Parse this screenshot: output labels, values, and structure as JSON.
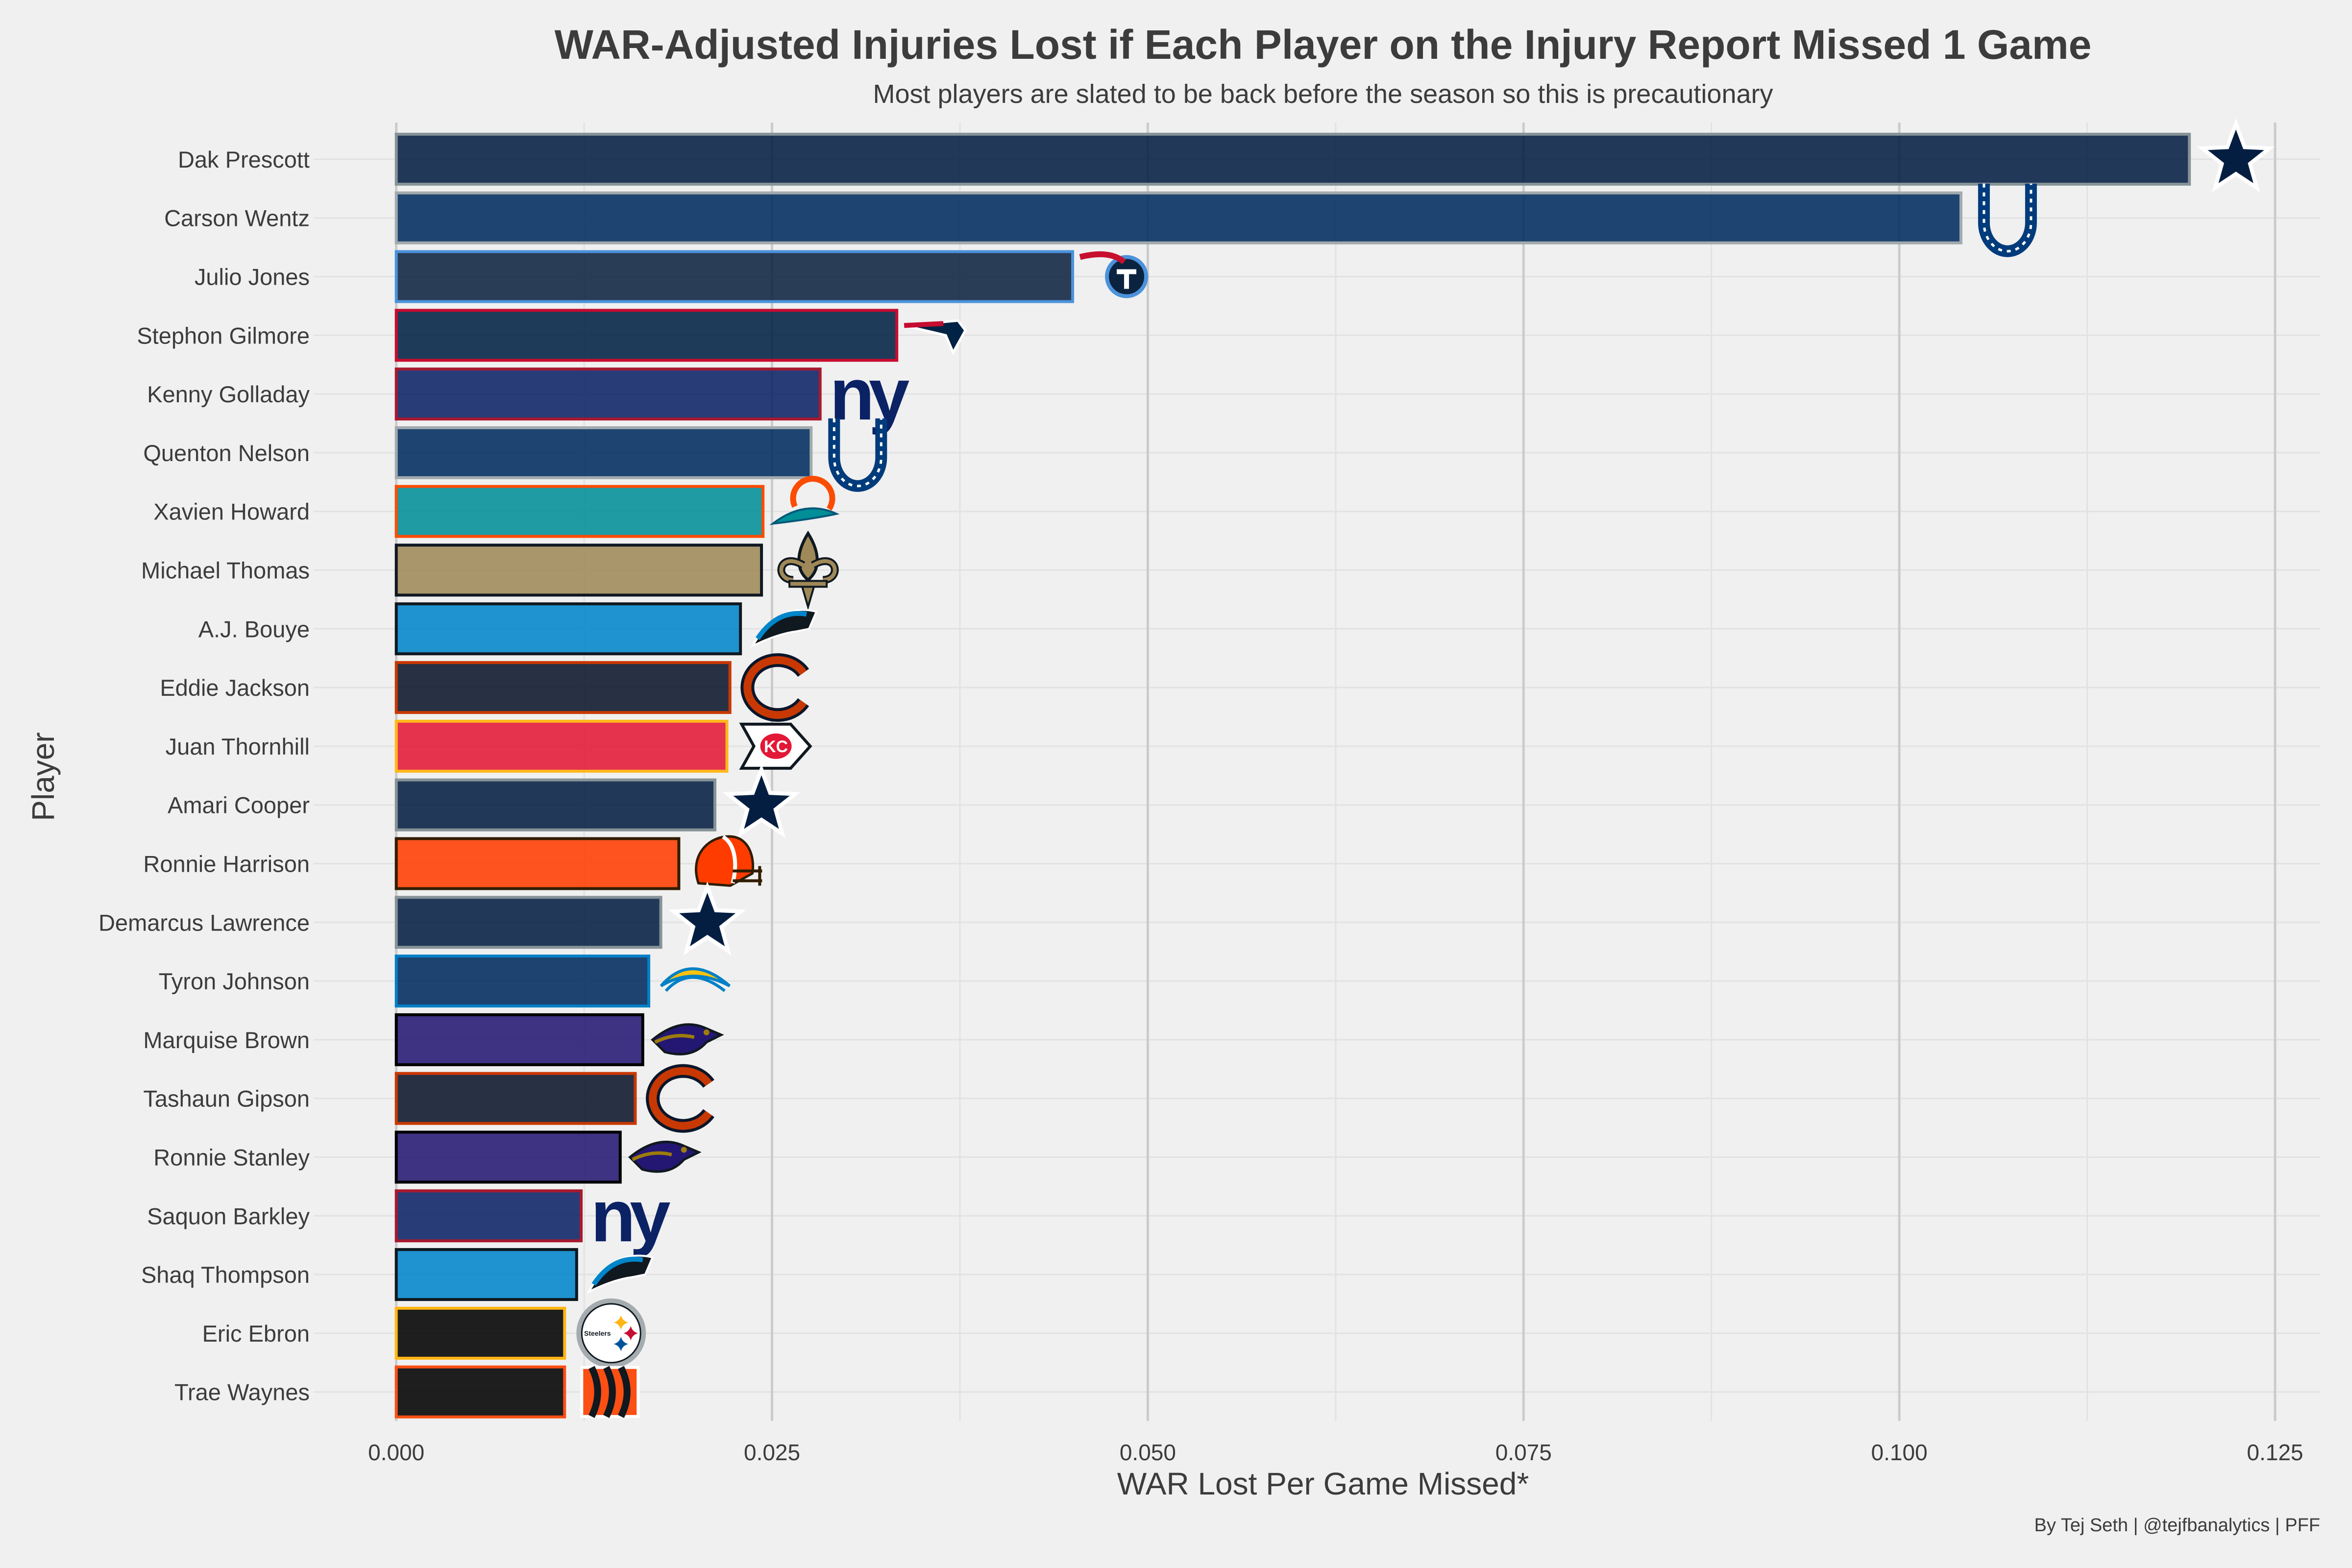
{
  "chart_data": {
    "type": "bar",
    "orientation": "horizontal",
    "title": "WAR-Adjusted Injuries Lost if Each Player on the Injury Report Missed 1 Game",
    "subtitle": "Most players are slated to be back before the season so this is precautionary",
    "xlabel": "WAR Lost Per Game Missed*",
    "ylabel": "Player",
    "caption": "By Tej Seth | @tejfbanalytics | PFF",
    "xlim": [
      -0.0055,
      0.128
    ],
    "xticks": [
      0,
      0.025,
      0.05,
      0.075,
      0.1,
      0.125
    ],
    "xtick_labels": [
      "0.000",
      "0.025",
      "0.050",
      "0.075",
      "0.100",
      "0.125"
    ],
    "grid": true,
    "legend": "none",
    "bars": [
      {
        "player": "Dak Prescott",
        "value": 0.1193,
        "team": "DAL",
        "fill": "#041e42",
        "stroke": "#869397"
      },
      {
        "player": "Carson Wentz",
        "value": 0.1041,
        "team": "IND",
        "fill": "#002c5f",
        "stroke": "#a2aaad"
      },
      {
        "player": "Julio Jones",
        "value": 0.045,
        "team": "TEN",
        "fill": "#0c2340",
        "stroke": "#4b92db"
      },
      {
        "player": "Stephon Gilmore",
        "value": 0.0333,
        "team": "NE",
        "fill": "#002244",
        "stroke": "#c60c30"
      },
      {
        "player": "Kenny Golladay",
        "value": 0.0282,
        "team": "NYG",
        "fill": "#0b2265",
        "stroke": "#a71930"
      },
      {
        "player": "Quenton Nelson",
        "value": 0.0276,
        "team": "IND",
        "fill": "#002c5f",
        "stroke": "#a2aaad"
      },
      {
        "player": "Xavien Howard",
        "value": 0.0244,
        "team": "MIA",
        "fill": "#008e97",
        "stroke": "#fc4c02"
      },
      {
        "player": "Michael Thomas",
        "value": 0.0243,
        "team": "NO",
        "fill": "#9f8958",
        "stroke": "#101820"
      },
      {
        "player": "A.J. Bouye",
        "value": 0.0229,
        "team": "CAR",
        "fill": "#0085ca",
        "stroke": "#101820"
      },
      {
        "player": "Eddie Jackson",
        "value": 0.0222,
        "team": "CHI",
        "fill": "#0b162a",
        "stroke": "#c83803"
      },
      {
        "player": "Juan Thornhill",
        "value": 0.022,
        "team": "KC",
        "fill": "#e31837",
        "stroke": "#ffb81c"
      },
      {
        "player": "Amari Cooper",
        "value": 0.0212,
        "team": "DAL",
        "fill": "#041e42",
        "stroke": "#869397"
      },
      {
        "player": "Ronnie Harrison",
        "value": 0.0188,
        "team": "CLE",
        "fill": "#ff3c00",
        "stroke": "#311d00"
      },
      {
        "player": "Demarcus Lawrence",
        "value": 0.0176,
        "team": "DAL",
        "fill": "#041e42",
        "stroke": "#869397"
      },
      {
        "player": "Tyron Johnson",
        "value": 0.0168,
        "team": "LAC",
        "fill": "#002a5e",
        "stroke": "#0080c6"
      },
      {
        "player": "Marquise Brown",
        "value": 0.0164,
        "team": "BAL",
        "fill": "#241773",
        "stroke": "#000000"
      },
      {
        "player": "Tashaun Gipson",
        "value": 0.0159,
        "team": "CHI",
        "fill": "#0b162a",
        "stroke": "#c83803"
      },
      {
        "player": "Ronnie Stanley",
        "value": 0.0149,
        "team": "BAL",
        "fill": "#241773",
        "stroke": "#000000"
      },
      {
        "player": "Saquon Barkley",
        "value": 0.0123,
        "team": "NYG",
        "fill": "#0b2265",
        "stroke": "#a71930"
      },
      {
        "player": "Shaq Thompson",
        "value": 0.012,
        "team": "CAR",
        "fill": "#0085ca",
        "stroke": "#101820"
      },
      {
        "player": "Eric Ebron",
        "value": 0.0112,
        "team": "PIT",
        "fill": "#000000",
        "stroke": "#ffb612"
      },
      {
        "player": "Trae Waynes",
        "value": 0.0112,
        "team": "CIN",
        "fill": "#000000",
        "stroke": "#fb4f14"
      }
    ],
    "colors": {
      "background": "#f0f0f0",
      "text": "#3c3c3c",
      "major_grid": "#cbcbcb",
      "minor_grid": "#e2e2e2"
    }
  }
}
